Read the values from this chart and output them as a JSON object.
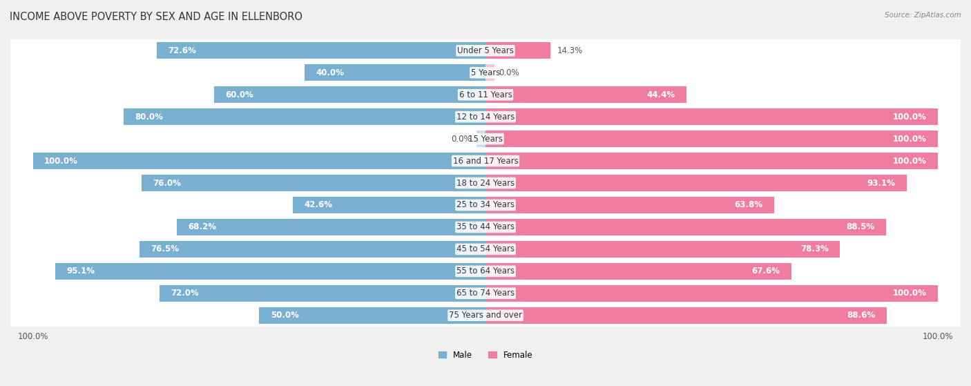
{
  "title": "INCOME ABOVE POVERTY BY SEX AND AGE IN ELLENBORO",
  "source": "Source: ZipAtlas.com",
  "categories": [
    "Under 5 Years",
    "5 Years",
    "6 to 11 Years",
    "12 to 14 Years",
    "15 Years",
    "16 and 17 Years",
    "18 to 24 Years",
    "25 to 34 Years",
    "35 to 44 Years",
    "45 to 54 Years",
    "55 to 64 Years",
    "65 to 74 Years",
    "75 Years and over"
  ],
  "male": [
    72.6,
    40.0,
    60.0,
    80.0,
    0.0,
    100.0,
    76.0,
    42.6,
    68.2,
    76.5,
    95.1,
    72.0,
    50.0
  ],
  "female": [
    14.3,
    0.0,
    44.4,
    100.0,
    100.0,
    100.0,
    93.1,
    63.8,
    88.5,
    78.3,
    67.6,
    100.0,
    88.6
  ],
  "male_color": "#79afd1",
  "female_color": "#f07ca0",
  "male_color_light": "#c5dded",
  "female_color_light": "#f9c4d4",
  "male_label": "Male",
  "female_label": "Female",
  "bg_color": "#f0f0f0",
  "row_bg_color": "#ffffff",
  "row_alt_bg_color": "#e8e8e8",
  "axis_label_bottom": "100.0%",
  "max_val": 100.0,
  "bar_height": 0.75,
  "title_fontsize": 10.5,
  "label_fontsize": 8.5,
  "source_fontsize": 7.5,
  "tick_fontsize": 8.5
}
